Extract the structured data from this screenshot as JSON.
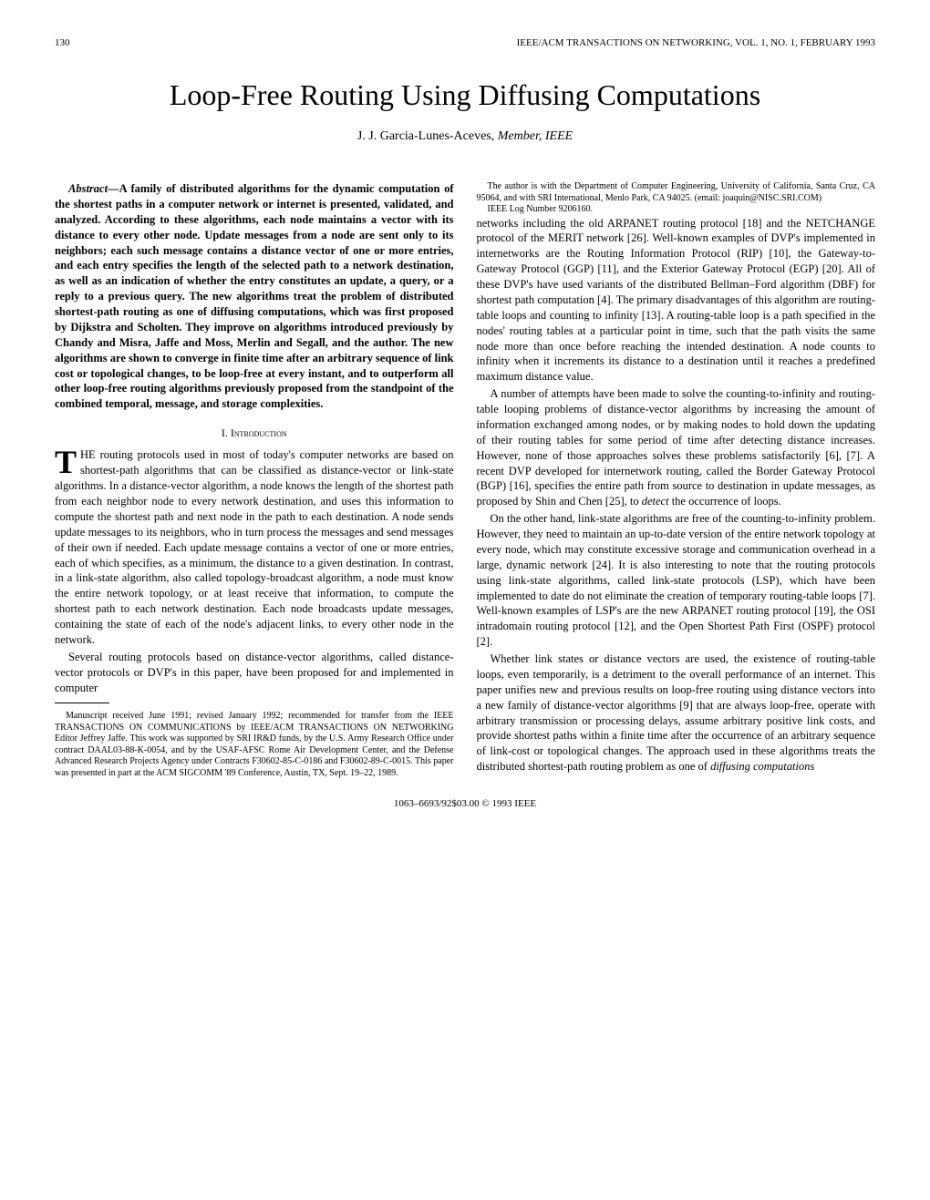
{
  "header": {
    "page_number": "130",
    "journal_info": "IEEE/ACM TRANSACTIONS ON NETWORKING, VOL. 1, NO. 1, FEBRUARY 1993"
  },
  "title": "Loop-Free Routing Using Diffusing Computations",
  "authors": {
    "name": "J. J. Garcia-Lunes-Aceves,",
    "affiliation": "Member, IEEE"
  },
  "abstract": {
    "label": "Abstract—",
    "text": "A family of distributed algorithms for the dynamic computation of the shortest paths in a computer network or internet is presented, validated, and analyzed. According to these algorithms, each node maintains a vector with its distance to every other node. Update messages from a node are sent only to its neighbors; each such message contains a distance vector of one or more entries, and each entry specifies the length of the selected path to a network destination, as well as an indication of whether the entry constitutes an update, a query, or a reply to a previous query. The new algorithms treat the problem of distributed shortest-path routing as one of diffusing computations, which was first proposed by Dijkstra and Scholten. They improve on algorithms introduced previously by Chandy and Misra, Jaffe and Moss, Merlin and Segall, and the author. The new algorithms are shown to converge in finite time after an arbitrary sequence of link cost or topological changes, to be loop-free at every instant, and to outperform all other loop-free routing algorithms previously proposed from the standpoint of the combined temporal, message, and storage complexities."
  },
  "section1": {
    "heading": "I. Introduction",
    "para1_first": "T",
    "para1_rest": "HE routing protocols used in most of today's computer networks are based on shortest-path algorithms that can be classified as distance-vector or link-state algorithms. In a distance-vector algorithm, a node knows the length of the shortest path from each neighbor node to every network destination, and uses this information to compute the shortest path and next node in the path to each destination. A node sends update messages to its neighbors, who in turn process the messages and send messages of their own if needed. Each update message contains a vector of one or more entries, each of which specifies, as a minimum, the distance to a given destination. In contrast, in a link-state algorithm, also called topology-broadcast algorithm, a node must know the entire network topology, or at least receive that information, to compute the shortest path to each network destination. Each node broadcasts update messages, containing the state of each of the node's adjacent links, to every other node in the network.",
    "para2": "Several routing protocols based on distance-vector algorithms, called distance-vector protocols or DVP's in this paper, have been proposed for and implemented in computer",
    "col2_para1": "networks including the old ARPANET routing protocol [18] and the NETCHANGE protocol of the MERIT network [26]. Well-known examples of DVP's implemented in internetworks are the Routing Information Protocol (RIP) [10], the Gateway-to-Gateway Protocol (GGP) [11], and the Exterior Gateway Protocol (EGP) [20]. All of these DVP's have used variants of the distributed Bellman–Ford algorithm (DBF) for shortest path computation [4]. The primary disadvantages of this algorithm are routing-table loops and counting to infinity [13]. A routing-table loop is a path specified in the nodes' routing tables at a particular point in time, such that the path visits the same node more than once before reaching the intended destination. A node counts to infinity when it increments its distance to a destination until it reaches a predefined maximum distance value.",
    "col2_para2_a": "A number of attempts have been made to solve the counting-to-infinity and routing-table looping problems of distance-vector algorithms by increasing the amount of information exchanged among nodes, or by making nodes to hold down the updating of their routing tables for some period of time after detecting distance increases. However, none of those approaches solves these problems satisfactorily [6], [7]. A recent DVP developed for internetwork routing, called the Border Gateway Protocol (BGP) [16], specifies the entire path from source to destination in update messages, as proposed by Shin and Chen [25], to ",
    "col2_para2_detect": "detect",
    "col2_para2_b": " the occurrence of loops.",
    "col2_para3": "On the other hand, link-state algorithms are free of the counting-to-infinity problem. However, they need to maintain an up-to-date version of the entire network topology at every node, which may constitute excessive storage and communication overhead in a large, dynamic network [24]. It is also interesting to note that the routing protocols using link-state algorithms, called link-state protocols (LSP), which have been implemented to date do not eliminate the creation of temporary routing-table loops [7]. Well-known examples of LSP's are the new ARPANET routing protocol [19], the OSI intradomain routing protocol [12], and the Open Shortest Path First (OSPF) protocol [2].",
    "col2_para4_a": "Whether link states or distance vectors are used, the existence of routing-table loops, even temporarily, is a detriment to the overall performance of an internet. This paper unifies new and previous results on loop-free routing using distance vectors into a new family of distance-vector algorithms [9] that are always loop-free, operate with arbitrary transmission or processing delays, assume arbitrary positive link costs, and provide shortest paths within a finite time after the occurrence of an arbitrary sequence of link-cost or topological changes. The approach used in these algorithms treats the distributed shortest-path routing problem as one of ",
    "col2_para4_diff": "diffusing computations"
  },
  "manuscript": {
    "p1": "Manuscript received June 1991; revised January 1992; recommended for transfer from the IEEE TRANSACTIONS ON COMMUNICATIONS by IEEE/ACM TRANSACTIONS ON NETWORKING Editor Jeffrey Jaffe. This work was supported by SRI IR&D funds, by the U.S. Army Research Office under contract DAAL03-88-K-0054, and by the USAF-AFSC Rome Air Development Center, and the Defense Advanced Research Projects Agency under Contracts F30602-85-C-0186 and F30602-89-C-0015. This paper was presented in part at the ACM SIGCOMM '89 Conference, Austin, TX, Sept. 19–22, 1989.",
    "p2": "The author is with the Department of Computer Engineering, University of California, Santa Cruz, CA 95064, and with SRI International, Menlo Park, CA 94025. (email: joaquin@NISC.SRI.COM)",
    "p3": "IEEE Log Number 9206160."
  },
  "footer": "1063–6693/92$03.00 © 1993 IEEE"
}
